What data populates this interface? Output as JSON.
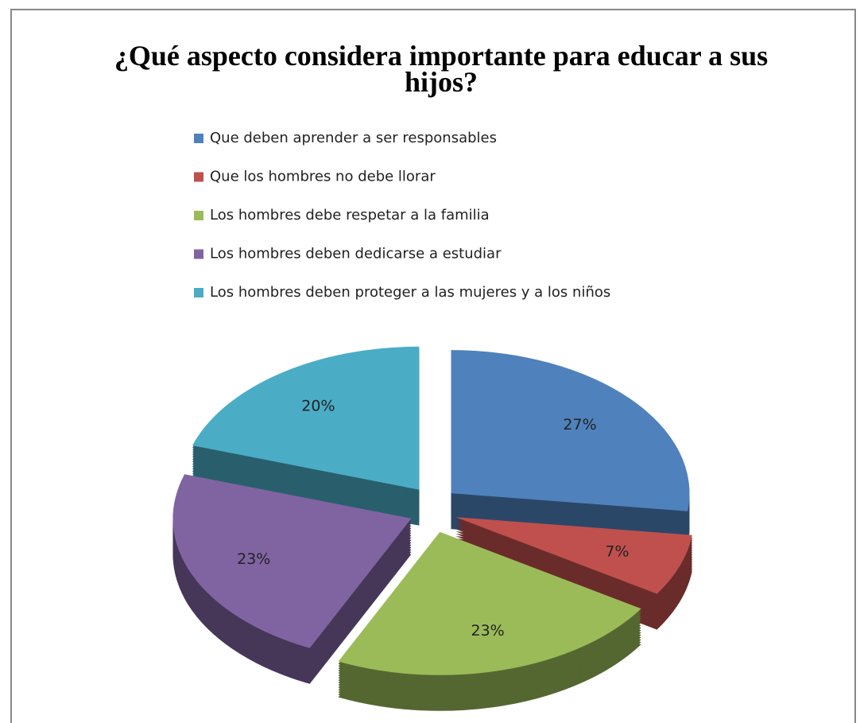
{
  "chart_data": {
    "type": "pie",
    "title": "¿Qué aspecto considera importante para educar a sus hijos?",
    "categories": [
      "Que deben aprender a ser responsables",
      "Que los hombres no debe llorar",
      "Los hombres debe respetar a la familia",
      "Los hombres deben dedicarse a estudiar",
      "Los hombres deben proteger a las mujeres y a los niños"
    ],
    "values": [
      27,
      7,
      23,
      23,
      20
    ],
    "value_labels": [
      "27%",
      "7%",
      "23%",
      "23%",
      "20%"
    ],
    "colors": [
      "#4f81bd",
      "#c0504d",
      "#9bbb59",
      "#8064a2",
      "#4bacc6"
    ],
    "legend": "top"
  }
}
